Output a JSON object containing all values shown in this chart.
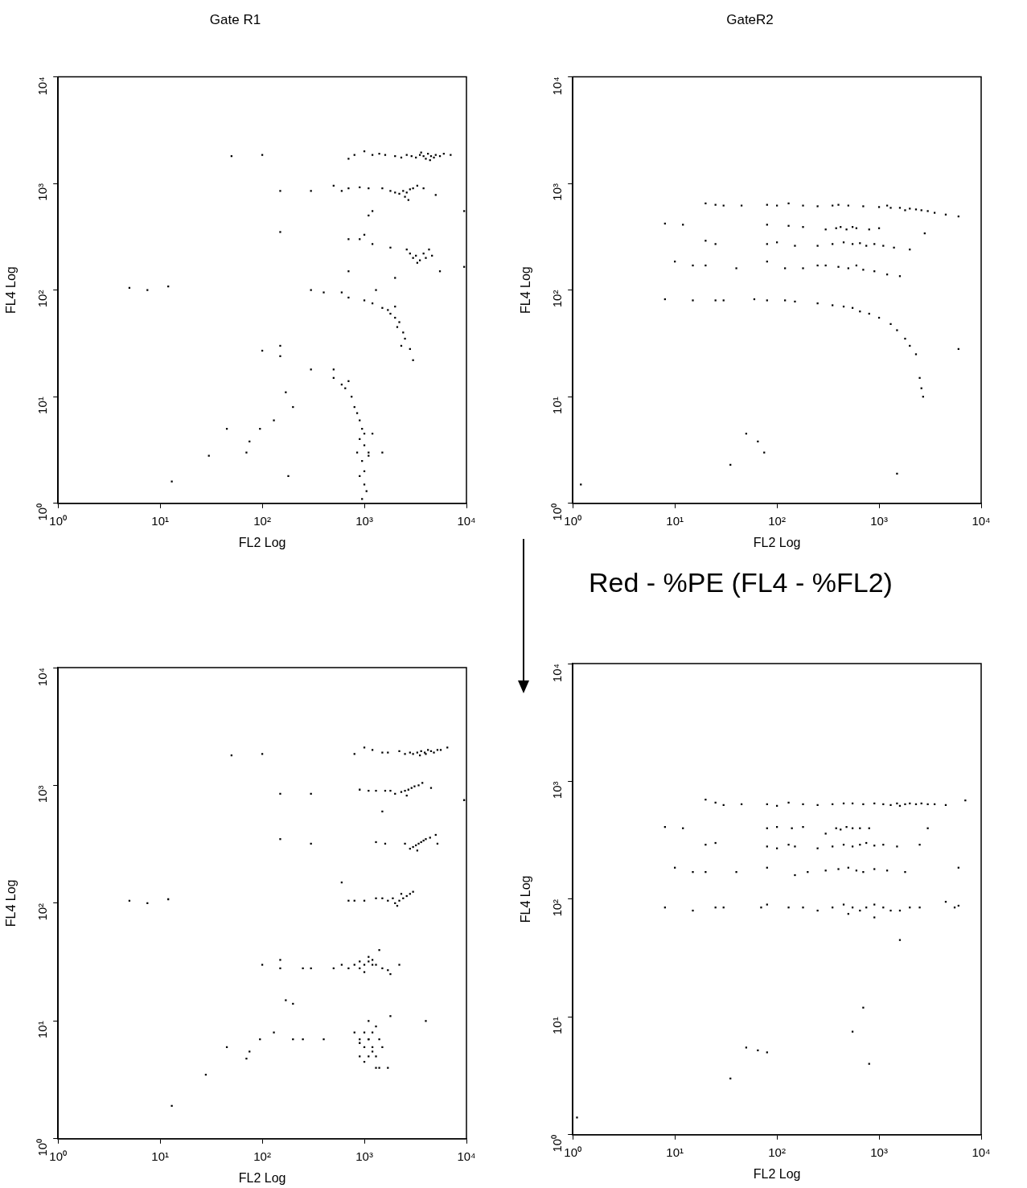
{
  "chart_data": [
    {
      "type": "scatter",
      "title": "Gate R1",
      "xlabel": "FL2 Log",
      "ylabel": "FL4 Log",
      "log": "xy",
      "grid": false,
      "marker": "square",
      "xlim": [
        1,
        10000
      ],
      "ylim": [
        1,
        10000
      ],
      "xticks": [
        {
          "value": 1,
          "label": "10⁰"
        },
        {
          "value": 10,
          "label": "10¹"
        },
        {
          "value": 100,
          "label": "10²"
        },
        {
          "value": 1000,
          "label": "10³"
        },
        {
          "value": 10000,
          "label": "10⁴"
        }
      ],
      "yticks": [
        {
          "value": 1,
          "label": "10⁰"
        },
        {
          "value": 10,
          "label": "10¹"
        },
        {
          "value": 100,
          "label": "10²"
        },
        {
          "value": 1000,
          "label": "10³"
        },
        {
          "value": 10000,
          "label": "10⁴"
        }
      ],
      "series": [
        {
          "color": "#000000",
          "x": [
            2000,
            2300,
            2600,
            2900,
            3200,
            3500,
            3800,
            4000,
            4200,
            4500,
            4800,
            5000,
            5500,
            6000,
            7000,
            3600,
            4400,
            1200,
            1400,
            800,
            1000,
            700,
            1600,
            1500,
            1800,
            2000,
            2200,
            2400,
            2600,
            2800,
            3000,
            3300,
            2500,
            2700,
            3800,
            5000,
            1100,
            900,
            700,
            600,
            500,
            1200,
            1100,
            2800,
            3000,
            3200,
            3500,
            3800,
            4000,
            4300,
            4600,
            3300,
            2600,
            1800,
            5500,
            1200,
            900,
            1000,
            700,
            700,
            2000,
            300,
            400,
            600,
            700,
            1000,
            1200,
            1500,
            1700,
            1800,
            2000,
            2200,
            2100,
            2400,
            2500,
            2300,
            2800,
            3000,
            2000,
            1300,
            300,
            500,
            500,
            600,
            700,
            650,
            750,
            800,
            850,
            900,
            950,
            1000,
            900,
            1000,
            1100,
            950,
            1000,
            900,
            1000,
            1050,
            950,
            1100,
            1200,
            850,
            50,
            100,
            150,
            150,
            300,
            5,
            7.5,
            12,
            100,
            150,
            150,
            170,
            200,
            130,
            95,
            45,
            75,
            70,
            30,
            13,
            180,
            1500,
            9500,
            9500
          ],
          "values": [
            1800,
            1750,
            1850,
            1800,
            1750,
            1850,
            1800,
            1700,
            1900,
            1800,
            1750,
            1850,
            1800,
            1900,
            1850,
            1950,
            1650,
            1850,
            1900,
            1850,
            2000,
            1700,
            1850,
            900,
            850,
            820,
            800,
            850,
            820,
            880,
            900,
            950,
            750,
            700,
            900,
            780,
            900,
            920,
            900,
            850,
            950,
            550,
            500,
            220,
            200,
            210,
            190,
            220,
            200,
            240,
            210,
            180,
            240,
            250,
            150,
            270,
            300,
            330,
            300,
            150,
            130,
            100,
            95,
            95,
            85,
            80,
            75,
            68,
            65,
            60,
            55,
            50,
            45,
            40,
            35,
            30,
            28,
            22,
            70,
            100,
            18,
            18,
            15,
            13,
            14,
            12,
            10,
            8,
            7,
            6,
            5,
            4.5,
            4,
            3.5,
            3,
            2.5,
            2,
            1.8,
            1.5,
            1.3,
            1.1,
            2.8,
            4.5,
            3,
            1800,
            1850,
            850,
            350,
            850,
            105,
            100,
            108,
            27,
            30,
            24,
            11,
            8,
            6,
            5,
            5,
            3.8,
            3,
            2.8,
            1.6,
            1.8,
            3,
            165,
            550
          ]
        }
      ]
    },
    {
      "type": "scatter",
      "title": "GateR2",
      "xlabel": "FL2 Log",
      "ylabel": "FL4 Log",
      "log": "xy",
      "grid": false,
      "marker": "square",
      "xlim": [
        1,
        10000
      ],
      "ylim": [
        1,
        10000
      ],
      "xticks": [
        {
          "value": 1,
          "label": "10⁰"
        },
        {
          "value": 10,
          "label": "10¹"
        },
        {
          "value": 100,
          "label": "10²"
        },
        {
          "value": 1000,
          "label": "10³"
        },
        {
          "value": 10000,
          "label": "10⁴"
        }
      ],
      "yticks": [
        {
          "value": 1,
          "label": "10⁰"
        },
        {
          "value": 10,
          "label": "10¹"
        },
        {
          "value": 100,
          "label": "10²"
        },
        {
          "value": 1000,
          "label": "10³"
        },
        {
          "value": 10000,
          "label": "10⁴"
        }
      ],
      "series": [
        {
          "color": "#000000",
          "x": [
            20,
            25,
            30,
            45,
            80,
            100,
            130,
            180,
            250,
            350,
            400,
            500,
            700,
            1000,
            1300,
            1600,
            2000,
            2300,
            2600,
            3000,
            3500,
            4500,
            6000,
            1800,
            1200,
            8,
            12,
            80,
            130,
            180,
            300,
            380,
            420,
            480,
            550,
            600,
            800,
            1000,
            2800,
            20,
            25,
            80,
            100,
            150,
            250,
            350,
            450,
            550,
            650,
            750,
            900,
            1100,
            1400,
            2000,
            10,
            15,
            20,
            40,
            80,
            120,
            180,
            250,
            300,
            400,
            500,
            600,
            700,
            900,
            1200,
            1600,
            8,
            15,
            25,
            30,
            60,
            80,
            120,
            150,
            250,
            350,
            450,
            550,
            650,
            800,
            1000,
            1300,
            1500,
            1800,
            2000,
            2300,
            2500,
            2600,
            2700,
            6000,
            50,
            65,
            75,
            35,
            1.2,
            1500
          ],
          "values": [
            650,
            630,
            620,
            620,
            630,
            620,
            650,
            620,
            610,
            620,
            630,
            620,
            610,
            600,
            590,
            590,
            580,
            570,
            560,
            550,
            530,
            510,
            490,
            560,
            620,
            420,
            410,
            410,
            400,
            390,
            370,
            380,
            390,
            370,
            390,
            380,
            370,
            380,
            340,
            290,
            270,
            270,
            280,
            260,
            260,
            270,
            280,
            270,
            275,
            260,
            270,
            260,
            250,
            240,
            185,
            170,
            170,
            160,
            185,
            160,
            160,
            170,
            170,
            165,
            160,
            170,
            155,
            150,
            140,
            135,
            82,
            80,
            80,
            80,
            82,
            80,
            80,
            78,
            75,
            72,
            70,
            68,
            63,
            60,
            55,
            48,
            42,
            35,
            30,
            25,
            15,
            12,
            10,
            28,
            4.5,
            3.8,
            3,
            2.3,
            1.5,
            1.9
          ]
        }
      ]
    },
    {
      "type": "scatter",
      "xlabel": "FL2 Log",
      "ylabel": "FL4 Log",
      "log": "xy",
      "grid": false,
      "marker": "square",
      "xlim": [
        1,
        10000
      ],
      "ylim": [
        1,
        10000
      ],
      "xticks": [
        {
          "value": 1,
          "label": "10⁰"
        },
        {
          "value": 10,
          "label": "10¹"
        },
        {
          "value": 100,
          "label": "10²"
        },
        {
          "value": 1000,
          "label": "10³"
        },
        {
          "value": 10000,
          "label": "10⁴"
        }
      ],
      "yticks": [
        {
          "value": 1,
          "label": "10⁰"
        },
        {
          "value": 10,
          "label": "10¹"
        },
        {
          "value": 100,
          "label": "10²"
        },
        {
          "value": 1000,
          "label": "10³"
        },
        {
          "value": 10000,
          "label": "10⁴"
        }
      ],
      "series": [
        {
          "color": "#000000",
          "x": [
            2500,
            2800,
            3000,
            3300,
            3600,
            3900,
            4200,
            4500,
            4800,
            5200,
            5600,
            6500,
            3500,
            4000,
            1200,
            1500,
            1700,
            800,
            1000,
            2200,
            2000,
            2300,
            2500,
            2700,
            2900,
            3100,
            3400,
            3700,
            2600,
            4500,
            1800,
            1600,
            1300,
            1100,
            900,
            1500,
            2800,
            3000,
            3200,
            3400,
            3600,
            3800,
            4000,
            4400,
            5000,
            5200,
            3300,
            2500,
            1600,
            1300,
            1500,
            1700,
            1900,
            2000,
            2200,
            2400,
            2600,
            2800,
            3000,
            2100,
            2300,
            1300,
            1000,
            800,
            700,
            600,
            700,
            800,
            900,
            1000,
            1100,
            1200,
            1300,
            1500,
            1700,
            1000,
            1100,
            900,
            1200,
            2200,
            1400,
            600,
            500,
            1800,
            800,
            900,
            1000,
            1100,
            1200,
            1300,
            1400,
            1500,
            900,
            1000,
            1100,
            1200,
            1300,
            1000,
            1100,
            1200,
            900,
            1100,
            1300,
            1400,
            1700,
            1800,
            50,
            100,
            150,
            300,
            150,
            300,
            5,
            7.5,
            12,
            100,
            150,
            150,
            250,
            300,
            170,
            200,
            130,
            95,
            45,
            75,
            70,
            28,
            13,
            200,
            250,
            400,
            4000,
            9500
          ],
          "values": [
            1850,
            1900,
            1850,
            1900,
            1950,
            1900,
            2000,
            1950,
            1900,
            2000,
            2000,
            2100,
            1800,
            1850,
            2000,
            1900,
            1900,
            1850,
            2100,
            1950,
            850,
            880,
            900,
            920,
            950,
            980,
            1000,
            1050,
            820,
            950,
            900,
            900,
            900,
            900,
            920,
            600,
            290,
            300,
            310,
            320,
            330,
            340,
            350,
            360,
            380,
            320,
            280,
            320,
            320,
            330,
            110,
            105,
            110,
            100,
            105,
            110,
            115,
            120,
            125,
            95,
            120,
            110,
            105,
            105,
            105,
            150,
            28,
            30,
            28,
            30,
            32,
            33,
            30,
            28,
            27,
            26,
            35,
            32,
            30,
            30,
            40,
            30,
            28,
            25,
            8,
            7,
            6,
            7,
            8,
            9,
            7,
            6,
            5,
            4.5,
            5,
            5.5,
            4,
            8,
            10,
            6,
            6.5,
            7,
            5,
            4,
            4,
            11,
            1800,
            1850,
            850,
            850,
            350,
            320,
            105,
            100,
            108,
            30,
            28,
            33,
            28,
            28,
            15,
            14,
            8,
            7,
            6,
            5.5,
            4.8,
            3.5,
            1.9,
            7,
            7,
            7,
            10,
            750
          ]
        }
      ]
    },
    {
      "type": "scatter",
      "annotations": [
        "Red - %PE (FL4 - %FL2)"
      ],
      "xlabel": "FL2 Log",
      "ylabel": "FL4 Log",
      "log": "xy",
      "grid": false,
      "marker": "square",
      "xlim": [
        1,
        10000
      ],
      "ylim": [
        1,
        10000
      ],
      "xticks": [
        {
          "value": 1,
          "label": "10⁰"
        },
        {
          "value": 10,
          "label": "10¹"
        },
        {
          "value": 100,
          "label": "10²"
        },
        {
          "value": 1000,
          "label": "10³"
        },
        {
          "value": 10000,
          "label": "10⁴"
        }
      ],
      "yticks": [
        {
          "value": 1,
          "label": "10⁰"
        },
        {
          "value": 10,
          "label": "10¹"
        },
        {
          "value": 100,
          "label": "10²"
        },
        {
          "value": 1000,
          "label": "10³"
        },
        {
          "value": 10000,
          "label": "10⁴"
        }
      ],
      "series": [
        {
          "color": "#000000",
          "x": [
            20,
            25,
            30,
            45,
            80,
            100,
            130,
            180,
            250,
            350,
            450,
            550,
            700,
            900,
            1100,
            1300,
            1500,
            1800,
            2000,
            2300,
            2600,
            3000,
            3500,
            4500,
            7000,
            1600,
            8,
            12,
            80,
            100,
            140,
            180,
            300,
            380,
            420,
            480,
            550,
            650,
            800,
            3000,
            20,
            25,
            80,
            100,
            130,
            150,
            250,
            350,
            450,
            550,
            650,
            750,
            900,
            1100,
            1500,
            2500,
            10,
            15,
            20,
            40,
            80,
            150,
            200,
            300,
            400,
            500,
            600,
            700,
            900,
            1200,
            1800,
            6000,
            8,
            15,
            25,
            30,
            70,
            80,
            130,
            180,
            250,
            350,
            450,
            550,
            650,
            750,
            900,
            1100,
            1300,
            1600,
            2000,
            2500,
            4500,
            5500,
            6000,
            500,
            1.1,
            35,
            50,
            65,
            80,
            550,
            700,
            800,
            1600,
            900
          ],
          "values": [
            700,
            660,
            630,
            640,
            640,
            620,
            660,
            640,
            630,
            640,
            650,
            650,
            640,
            650,
            640,
            630,
            650,
            640,
            650,
            640,
            650,
            640,
            640,
            630,
            690,
            620,
            410,
            400,
            400,
            410,
            400,
            410,
            360,
            400,
            390,
            410,
            400,
            400,
            400,
            400,
            290,
            300,
            280,
            270,
            290,
            280,
            270,
            280,
            290,
            280,
            290,
            300,
            285,
            290,
            280,
            290,
            185,
            170,
            170,
            170,
            185,
            160,
            170,
            175,
            180,
            185,
            175,
            170,
            180,
            175,
            170,
            185,
            85,
            80,
            85,
            85,
            85,
            90,
            85,
            85,
            80,
            85,
            90,
            85,
            80,
            85,
            90,
            85,
            80,
            80,
            85,
            85,
            95,
            85,
            88,
            75,
            1.4,
            3,
            5.5,
            5.2,
            5,
            7.5,
            12,
            4,
            45,
            70
          ]
        }
      ]
    }
  ]
}
